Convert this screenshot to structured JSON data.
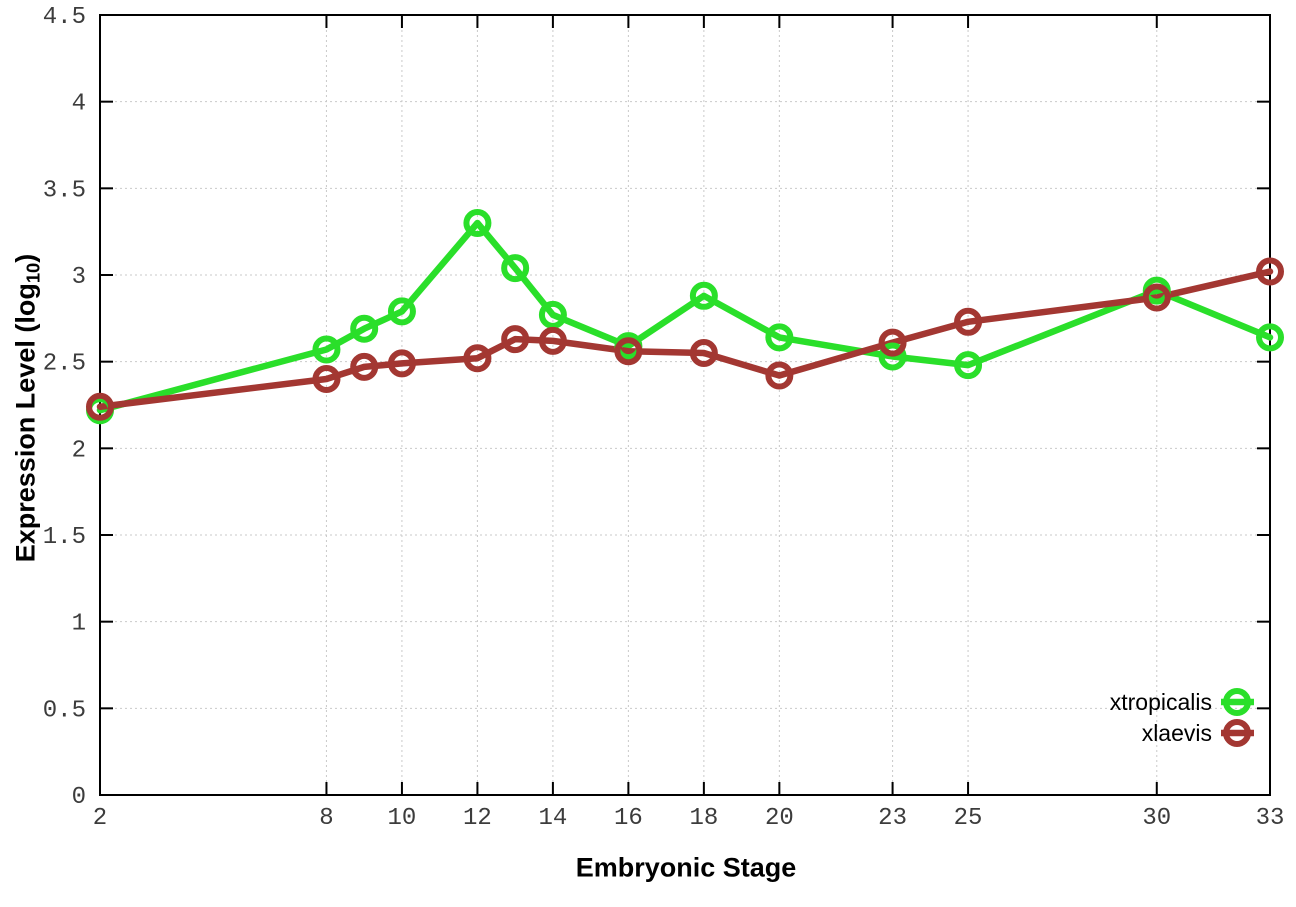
{
  "colors": {
    "background": "#ffffff",
    "plot_border": "#000000",
    "grid": "#c9c9c9",
    "tick_label": "#3c3c3c",
    "legend_text": "#000000",
    "xtropicalis_green": "#2adf2a",
    "xlaevis_red": "#a33732"
  },
  "chart_data": {
    "type": "line",
    "title": "",
    "xlabel": "Embryonic Stage",
    "ylabel": "Expression Level (log10)",
    "ylabel_prefix": "Expression Level (log",
    "ylabel_sub": "10",
    "ylabel_suffix": ")",
    "xlim": [
      2,
      33
    ],
    "ylim": [
      0,
      4.5
    ],
    "grid": true,
    "grid_style": "dotted",
    "legend_position": "bottom-right",
    "x_ticks": [
      2,
      8,
      10,
      12,
      14,
      16,
      18,
      20,
      23,
      25,
      30,
      33
    ],
    "x_tick_labels": [
      "2",
      "8",
      "10",
      "12",
      "14",
      "16",
      "18",
      "20",
      "23",
      "25",
      "30",
      "33"
    ],
    "y_ticks": [
      0,
      0.5,
      1,
      1.5,
      2,
      2.5,
      3,
      3.5,
      4,
      4.5
    ],
    "y_tick_labels": [
      "0",
      "0.5",
      "1",
      "1.5",
      "2",
      "2.5",
      "3",
      "3.5",
      "4",
      "4.5"
    ],
    "x": [
      2,
      8,
      9,
      10,
      12,
      13,
      14,
      16,
      18,
      20,
      23,
      25,
      30,
      33
    ],
    "series": [
      {
        "name": "xtropicalis",
        "color": "#2adf2a",
        "marker": "open-circle",
        "values": [
          2.22,
          2.57,
          2.69,
          2.79,
          3.3,
          3.04,
          2.77,
          2.59,
          2.88,
          2.64,
          2.53,
          2.48,
          2.91,
          2.64
        ]
      },
      {
        "name": "xlaevis",
        "color": "#a33732",
        "marker": "open-circle",
        "values": [
          2.24,
          2.4,
          2.47,
          2.49,
          2.52,
          2.63,
          2.62,
          2.56,
          2.55,
          2.42,
          2.61,
          2.73,
          2.87,
          3.02
        ]
      }
    ]
  }
}
